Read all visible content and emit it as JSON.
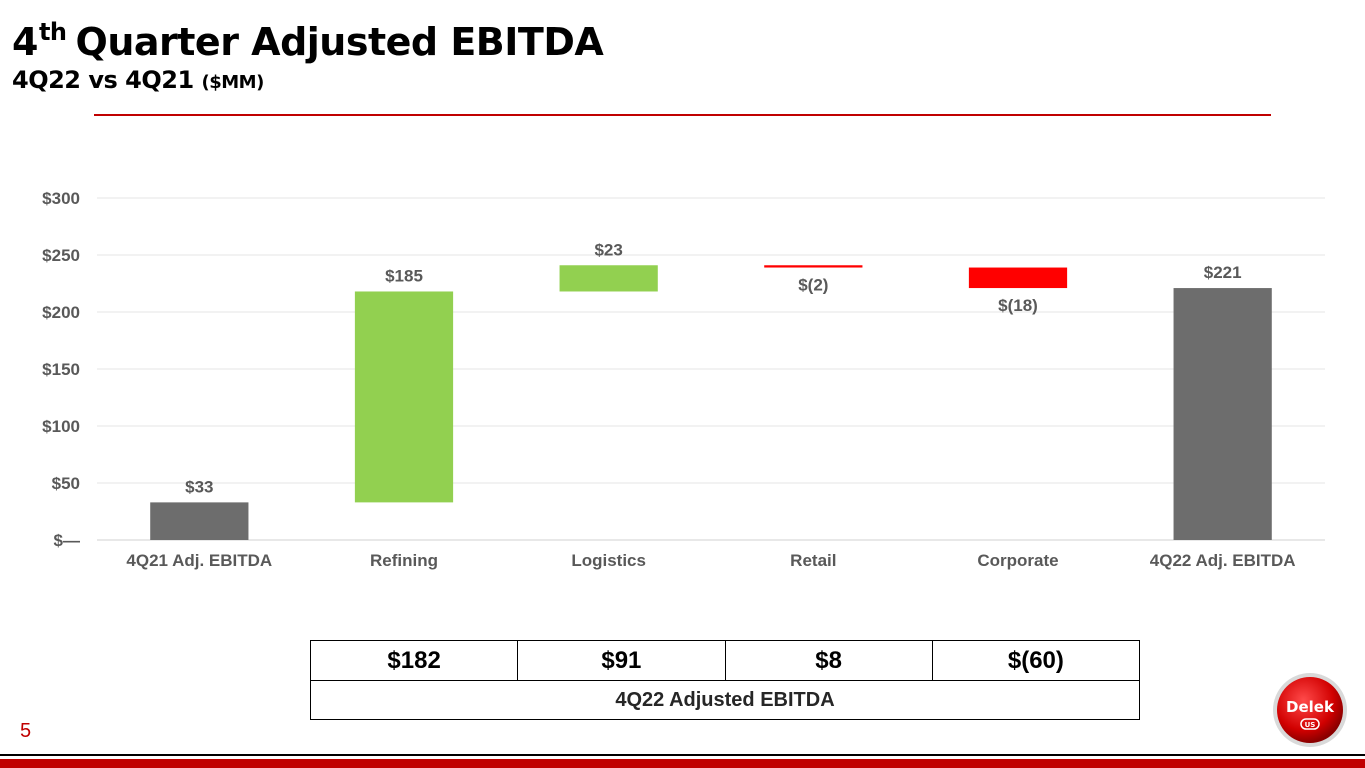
{
  "slide": {
    "title_pre": "4",
    "title_sup": "th",
    "title_post": "Quarter Adjusted EBITDA",
    "subtitle": "4Q22 vs 4Q21",
    "subtitle_unit": "($MM)",
    "page_number": "5"
  },
  "colors": {
    "accent_red": "#c00000",
    "increase_green": "#92d050",
    "decrease_red": "#ff0000",
    "total_gray": "#6d6d6d",
    "gridline": "#e6e6e6",
    "axis_text": "#595959"
  },
  "chart_data": {
    "type": "waterfall",
    "categories": [
      "4Q21 Adj. EBITDA",
      "Refining",
      "Logistics",
      "Retail",
      "Corporate",
      "4Q22 Adj. EBITDA"
    ],
    "values": [
      33,
      185,
      23,
      -2,
      -18,
      221
    ],
    "kinds": [
      "total",
      "increase",
      "increase",
      "decrease",
      "decrease",
      "total"
    ],
    "data_labels": [
      "$33",
      "$185",
      "$23",
      "$(2)",
      "$(18)",
      "$221"
    ],
    "y_ticks": [
      0,
      50,
      100,
      150,
      200,
      250,
      300
    ],
    "y_tick_labels": [
      "$—",
      "$50",
      "$100",
      "$150",
      "$200",
      "$250",
      "$300"
    ],
    "ylim": [
      0,
      300
    ],
    "gridlines": true,
    "title": "",
    "xlabel": "",
    "ylabel": ""
  },
  "summary_table": {
    "values": [
      "$182",
      "$91",
      "$8",
      "$(60)"
    ],
    "footer": "4Q22 Adjusted EBITDA"
  },
  "logo": {
    "text": "Delek",
    "subtext": "US"
  }
}
